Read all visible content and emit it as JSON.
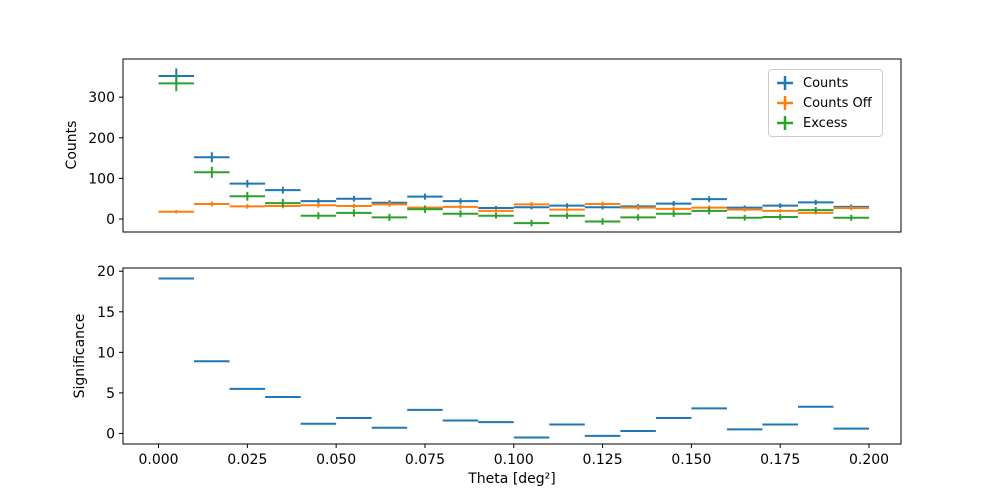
{
  "colors": {
    "counts": "#1f77b4",
    "counts_off": "#ff7f0e",
    "excess": "#2ca02c",
    "spine": "#000000"
  },
  "top_plot": {
    "ylabel": "Counts"
  },
  "bottom_plot": {
    "ylabel": "Significance",
    "xlabel": "Theta [deg²]"
  },
  "legend": {
    "items": [
      {
        "label": "Counts",
        "color": "#1f77b4"
      },
      {
        "label": "Counts Off",
        "color": "#ff7f0e"
      },
      {
        "label": "Excess",
        "color": "#2ca02c"
      }
    ]
  },
  "chart_data": [
    {
      "type": "scatter",
      "marker": "hline-with-yerr (errorbar, bin-width horizontal bars)",
      "title": "",
      "xlabel": "",
      "ylabel": "Counts",
      "grid": false,
      "legend_position": "upper right",
      "xlim": [
        -0.01,
        0.209
      ],
      "ylim": [
        -32,
        394
      ],
      "yticks": [
        0,
        100,
        200,
        300
      ],
      "bin_half_width": 0.005,
      "x": [
        0.005,
        0.015,
        0.025,
        0.035,
        0.045,
        0.055,
        0.065,
        0.075,
        0.085,
        0.095,
        0.105,
        0.115,
        0.125,
        0.135,
        0.145,
        0.155,
        0.165,
        0.175,
        0.185,
        0.195
      ],
      "series": [
        {
          "name": "Counts",
          "color": "#1f77b4",
          "values": [
            352,
            152,
            87,
            71,
            44,
            50,
            40,
            55,
            44,
            27,
            29,
            33,
            29,
            31,
            38,
            49,
            28,
            33,
            41,
            30
          ],
          "yerr": [
            18.8,
            12.3,
            9.3,
            8.4,
            6.6,
            7.1,
            6.3,
            7.4,
            6.6,
            5.2,
            5.4,
            5.7,
            5.4,
            5.6,
            6.2,
            7.0,
            5.3,
            5.7,
            6.4,
            5.5
          ]
        },
        {
          "name": "Counts Off",
          "color": "#ff7f0e",
          "values": [
            18,
            37,
            31,
            32,
            34,
            32,
            36,
            28,
            30,
            20,
            36,
            23,
            37,
            28,
            25,
            28,
            23,
            20,
            15,
            27
          ],
          "yerr": [
            4.2,
            6.1,
            5.6,
            5.7,
            5.8,
            5.7,
            6.0,
            5.3,
            5.5,
            4.5,
            6.0,
            4.8,
            6.1,
            5.3,
            5.0,
            5.3,
            4.8,
            4.5,
            3.9,
            5.2
          ]
        },
        {
          "name": "Excess",
          "color": "#2ca02c",
          "values": [
            334,
            115,
            56,
            39,
            8,
            15,
            4,
            24,
            13,
            8,
            -10,
            8,
            -6,
            4,
            13,
            20,
            3,
            5,
            22,
            3
          ],
          "yerr": [
            19.2,
            13.7,
            10.9,
            10.1,
            8.8,
            9.1,
            8.7,
            9.1,
            8.6,
            6.9,
            8.1,
            7.5,
            8.1,
            7.7,
            7.9,
            8.8,
            7.1,
            7.3,
            7.5,
            7.5
          ]
        }
      ]
    },
    {
      "type": "scatter",
      "marker": "hline (bin-width horizontal bars, no vertical error)",
      "title": "",
      "xlabel": "Theta [deg²]",
      "ylabel": "Significance",
      "grid": false,
      "xlim": [
        -0.01,
        0.209
      ],
      "ylim": [
        -1.3,
        20.4
      ],
      "yticks": [
        0,
        5,
        10,
        15,
        20
      ],
      "xticks": [
        0.0,
        0.025,
        0.05,
        0.075,
        0.1,
        0.125,
        0.15,
        0.175,
        0.2
      ],
      "xtick_labels": [
        "0.000",
        "0.025",
        "0.050",
        "0.075",
        "0.100",
        "0.125",
        "0.150",
        "0.175",
        "0.200"
      ],
      "bin_half_width": 0.005,
      "x": [
        0.005,
        0.015,
        0.025,
        0.035,
        0.045,
        0.055,
        0.065,
        0.075,
        0.085,
        0.095,
        0.105,
        0.115,
        0.125,
        0.135,
        0.145,
        0.155,
        0.165,
        0.175,
        0.185,
        0.195
      ],
      "series": [
        {
          "name": "Significance",
          "color": "#1f77b4",
          "values": [
            19.1,
            8.9,
            5.5,
            4.5,
            1.2,
            1.9,
            0.7,
            2.9,
            1.6,
            1.4,
            -0.5,
            1.1,
            -0.3,
            0.3,
            1.9,
            3.1,
            0.5,
            1.1,
            3.3,
            0.6
          ]
        }
      ]
    }
  ]
}
